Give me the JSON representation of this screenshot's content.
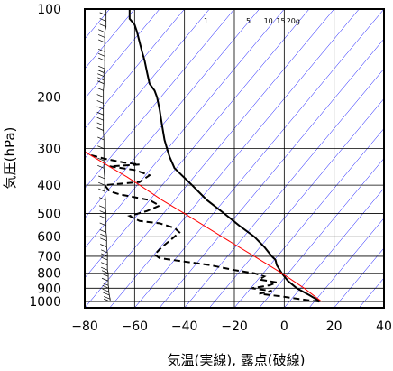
{
  "chart_data": {
    "type": "line",
    "title": "",
    "xlabel": "気温(実線), 露点(破線)",
    "ylabel": "気圧(hPa)",
    "xlim": [
      -80,
      40
    ],
    "ylim": [
      1050,
      100
    ],
    "y_scale": "log",
    "x_ticks": [
      -80,
      -60,
      -40,
      -20,
      0,
      20,
      40
    ],
    "y_ticks": [
      100,
      200,
      300,
      400,
      500,
      600,
      700,
      800,
      900,
      1000
    ],
    "grid": true,
    "legend": "none",
    "mixing_ratio_labels": [
      "1",
      "5",
      "10",
      "15",
      "20g"
    ],
    "series": [
      {
        "role": "temperature",
        "style": "solid",
        "color": "#000000",
        "points": [
          [
            14.5,
            1000
          ],
          [
            10,
            950
          ],
          [
            5,
            900
          ],
          [
            1.5,
            850
          ],
          [
            -1,
            800
          ],
          [
            -3,
            750
          ],
          [
            -3.5,
            720
          ],
          [
            -5,
            700
          ],
          [
            -8,
            650
          ],
          [
            -12,
            600
          ],
          [
            -18,
            550
          ],
          [
            -24,
            500
          ],
          [
            -31,
            450
          ],
          [
            -37,
            400
          ],
          [
            -44,
            350
          ],
          [
            -46,
            320
          ],
          [
            -47,
            300
          ],
          [
            -48,
            280
          ],
          [
            -49,
            250
          ],
          [
            -50,
            220
          ],
          [
            -51,
            200
          ],
          [
            -52,
            190
          ],
          [
            -54,
            180
          ],
          [
            -55,
            165
          ],
          [
            -56,
            150
          ],
          [
            -57,
            140
          ],
          [
            -58,
            130
          ],
          [
            -59,
            120
          ],
          [
            -60,
            113
          ],
          [
            -62,
            108
          ],
          [
            -62,
            100
          ]
        ]
      },
      {
        "role": "dewpoint",
        "style": "dashed",
        "color": "#000000",
        "points": [
          [
            14,
            1000
          ],
          [
            6,
            980
          ],
          [
            -1,
            960
          ],
          [
            -10,
            940
          ],
          [
            -5,
            920
          ],
          [
            -13,
            900
          ],
          [
            -6,
            880
          ],
          [
            -3,
            860
          ],
          [
            -10,
            840
          ],
          [
            -8,
            820
          ],
          [
            -12,
            800
          ],
          [
            -20,
            780
          ],
          [
            -30,
            750
          ],
          [
            -45,
            720
          ],
          [
            -50,
            710
          ],
          [
            -52,
            690
          ],
          [
            -49,
            650
          ],
          [
            -46,
            620
          ],
          [
            -42,
            580
          ],
          [
            -44,
            560
          ],
          [
            -50,
            540
          ],
          [
            -58,
            530
          ],
          [
            -62,
            510
          ],
          [
            -55,
            490
          ],
          [
            -50,
            470
          ],
          [
            -54,
            450
          ],
          [
            -66,
            430
          ],
          [
            -70,
            420
          ],
          [
            -72,
            400
          ],
          [
            -58,
            390
          ],
          [
            -54,
            370
          ],
          [
            -60,
            355
          ],
          [
            -70,
            345
          ],
          [
            -58,
            340
          ],
          [
            -64,
            335
          ],
          [
            -72,
            325
          ],
          [
            -78,
            315
          ]
        ]
      },
      {
        "role": "parcel",
        "style": "solid",
        "color": "#ff0000",
        "points": [
          [
            15,
            1000
          ],
          [
            8,
            900
          ],
          [
            -1,
            800
          ],
          [
            -12,
            700
          ],
          [
            -25,
            600
          ],
          [
            -40,
            500
          ],
          [
            -49,
            450
          ],
          [
            -58,
            400
          ],
          [
            -63,
            375
          ],
          [
            -69,
            350
          ],
          [
            -82,
            300
          ]
        ]
      }
    ],
    "wind_profile": [
      [
        1000,
        5
      ],
      [
        980,
        5
      ],
      [
        950,
        8
      ],
      [
        925,
        10
      ],
      [
        900,
        10
      ],
      [
        880,
        12
      ],
      [
        850,
        12
      ],
      [
        820,
        12
      ],
      [
        800,
        12
      ],
      [
        780,
        15
      ],
      [
        750,
        15
      ],
      [
        720,
        15
      ],
      [
        700,
        15
      ],
      [
        680,
        15
      ],
      [
        650,
        18
      ],
      [
        620,
        18
      ],
      [
        600,
        18
      ],
      [
        580,
        20
      ],
      [
        550,
        20
      ],
      [
        520,
        20
      ],
      [
        500,
        20
      ],
      [
        480,
        22
      ],
      [
        450,
        22
      ],
      [
        420,
        25
      ],
      [
        400,
        25
      ],
      [
        380,
        25
      ],
      [
        350,
        28
      ],
      [
        330,
        28
      ],
      [
        300,
        28
      ],
      [
        280,
        28
      ],
      [
        260,
        30
      ],
      [
        250,
        30
      ],
      [
        240,
        30
      ],
      [
        230,
        30
      ],
      [
        220,
        30
      ],
      [
        210,
        30
      ],
      [
        200,
        30
      ],
      [
        190,
        30
      ],
      [
        180,
        28
      ],
      [
        175,
        28
      ],
      [
        170,
        28
      ],
      [
        165,
        28
      ],
      [
        160,
        25
      ],
      [
        150,
        25
      ],
      [
        145,
        25
      ],
      [
        140,
        25
      ],
      [
        130,
        25
      ],
      [
        125,
        25
      ],
      [
        120,
        25
      ],
      [
        115,
        20
      ],
      [
        110,
        20
      ],
      [
        105,
        20
      ],
      [
        100,
        20
      ]
    ],
    "colors": {
      "frame": "#000000",
      "gridline": "#000000",
      "dry_adiabat": "#0000ff",
      "parcel": "#ff0000"
    }
  }
}
